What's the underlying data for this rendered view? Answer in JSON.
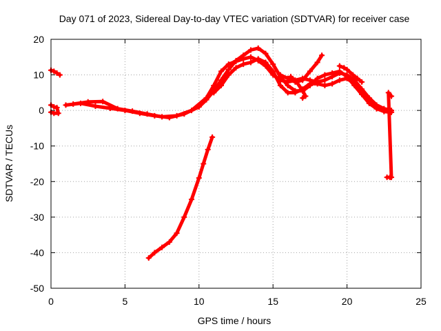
{
  "chart_data": {
    "type": "scatter",
    "title": "Day 071 of 2023, Sidereal Day-to-day VTEC variation (SDTVAR) for receiver case",
    "xlabel": "GPS time / hours",
    "ylabel": "SDTVAR / TECUs",
    "xlim": [
      0,
      25
    ],
    "ylim": [
      -50,
      20
    ],
    "xticks": [
      0,
      5,
      10,
      15,
      20,
      25
    ],
    "yticks": [
      -50,
      -40,
      -30,
      -20,
      -10,
      0,
      10,
      20
    ],
    "grid": true,
    "legend": "none",
    "series": [
      {
        "name": "early-segment-high",
        "color": "#ff0000",
        "points": [
          [
            0.0,
            11.3
          ],
          [
            0.2,
            11.0
          ],
          [
            0.4,
            10.5
          ],
          [
            0.6,
            10.0
          ]
        ]
      },
      {
        "name": "early-segment-low",
        "color": "#ff0000",
        "points": [
          [
            0.0,
            1.5
          ],
          [
            0.2,
            1.0
          ],
          [
            0.4,
            0.8
          ],
          [
            0.5,
            -0.8
          ],
          [
            0.2,
            -0.8
          ],
          [
            0.0,
            -0.5
          ]
        ]
      },
      {
        "name": "main-track-a",
        "color": "#ff0000",
        "points": [
          [
            1.0,
            1.5
          ],
          [
            2.0,
            2.0
          ],
          [
            3.0,
            1.2
          ],
          [
            4.0,
            0.6
          ],
          [
            5.0,
            0.0
          ],
          [
            6.0,
            -0.8
          ],
          [
            7.0,
            -1.5
          ],
          [
            8.0,
            -2.0
          ],
          [
            9.0,
            -1.0
          ],
          [
            10.0,
            1.0
          ],
          [
            10.5,
            3.0
          ],
          [
            11.0,
            5.5
          ],
          [
            11.5,
            8.5
          ],
          [
            12.0,
            11.5
          ],
          [
            12.5,
            14.0
          ],
          [
            13.0,
            15.5
          ],
          [
            13.5,
            17.0
          ],
          [
            14.0,
            17.5
          ],
          [
            14.5,
            16.0
          ],
          [
            15.0,
            13.0
          ],
          [
            15.5,
            9.5
          ],
          [
            16.0,
            7.0
          ],
          [
            16.5,
            5.5
          ],
          [
            17.0,
            5.5
          ],
          [
            17.5,
            7.0
          ],
          [
            18.0,
            9.0
          ],
          [
            18.5,
            10.0
          ],
          [
            19.0,
            10.5
          ],
          [
            19.5,
            11.0
          ],
          [
            20.0,
            9.5
          ],
          [
            20.5,
            7.0
          ],
          [
            21.0,
            4.5
          ],
          [
            21.5,
            2.0
          ],
          [
            22.0,
            0.5
          ],
          [
            22.5,
            0.0
          ],
          [
            23.0,
            -0.5
          ]
        ]
      },
      {
        "name": "main-track-b",
        "color": "#ff0000",
        "points": [
          [
            1.5,
            1.8
          ],
          [
            2.5,
            2.4
          ],
          [
            3.5,
            2.5
          ],
          [
            4.5,
            0.5
          ],
          [
            5.5,
            -0.2
          ],
          [
            6.5,
            -1.0
          ],
          [
            7.5,
            -1.8
          ],
          [
            8.5,
            -1.5
          ],
          [
            9.5,
            0.0
          ],
          [
            10.5,
            3.5
          ],
          [
            11.0,
            7.0
          ],
          [
            11.5,
            11.0
          ],
          [
            12.0,
            13.0
          ],
          [
            12.5,
            13.8
          ],
          [
            13.0,
            14.5
          ],
          [
            13.5,
            15.0
          ],
          [
            14.0,
            14.0
          ],
          [
            14.5,
            12.5
          ],
          [
            15.0,
            10.0
          ],
          [
            15.5,
            8.5
          ],
          [
            16.0,
            8.0
          ],
          [
            16.5,
            8.5
          ],
          [
            17.0,
            9.0
          ],
          [
            17.5,
            8.5
          ],
          [
            18.0,
            8.0
          ],
          [
            18.5,
            8.5
          ],
          [
            19.0,
            9.5
          ],
          [
            19.5,
            10.5
          ],
          [
            20.0,
            10.0
          ],
          [
            20.5,
            8.5
          ],
          [
            21.0,
            6.0
          ],
          [
            21.5,
            3.5
          ],
          [
            22.0,
            1.5
          ],
          [
            22.5,
            0.5
          ],
          [
            23.0,
            0.0
          ]
        ]
      },
      {
        "name": "main-track-c",
        "color": "#ff0000",
        "points": [
          [
            11.0,
            5.0
          ],
          [
            11.5,
            7.0
          ],
          [
            12.0,
            10.0
          ],
          [
            12.5,
            12.0
          ],
          [
            13.0,
            13.0
          ],
          [
            13.5,
            13.5
          ],
          [
            14.0,
            14.5
          ],
          [
            14.5,
            13.5
          ],
          [
            15.0,
            11.0
          ],
          [
            15.5,
            7.0
          ],
          [
            16.0,
            5.0
          ],
          [
            16.5,
            5.0
          ],
          [
            17.0,
            6.0
          ],
          [
            17.5,
            7.5
          ],
          [
            18.0,
            7.5
          ],
          [
            18.5,
            7.0
          ],
          [
            19.0,
            7.5
          ],
          [
            19.5,
            8.5
          ],
          [
            20.0,
            9.0
          ],
          [
            20.5,
            7.5
          ],
          [
            21.0,
            5.0
          ],
          [
            21.5,
            2.5
          ],
          [
            22.0,
            0.5
          ],
          [
            22.5,
            -0.3
          ],
          [
            23.0,
            -0.5
          ]
        ]
      },
      {
        "name": "branch-16-18",
        "color": "#ff0000",
        "points": [
          [
            15.5,
            10.0
          ],
          [
            16.0,
            9.0
          ],
          [
            16.5,
            8.0
          ],
          [
            17.0,
            8.5
          ],
          [
            17.5,
            11.0
          ],
          [
            18.0,
            13.5
          ],
          [
            18.3,
            15.5
          ]
        ]
      },
      {
        "name": "branch-16-17",
        "color": "#ff0000",
        "points": [
          [
            16.2,
            9.5
          ],
          [
            16.6,
            8.0
          ],
          [
            17.0,
            5.5
          ],
          [
            17.2,
            4.0
          ],
          [
            17.0,
            3.5
          ]
        ]
      },
      {
        "name": "branch-20-21",
        "color": "#ff0000",
        "points": [
          [
            19.5,
            12.5
          ],
          [
            19.8,
            12.0
          ],
          [
            20.0,
            11.5
          ],
          [
            20.4,
            10.0
          ],
          [
            20.7,
            9.0
          ],
          [
            21.0,
            8.0
          ]
        ]
      },
      {
        "name": "descending-track",
        "color": "#ff0000",
        "points": [
          [
            6.6,
            -41.5
          ],
          [
            7.0,
            -40.0
          ],
          [
            7.5,
            -38.5
          ],
          [
            8.0,
            -37.0
          ],
          [
            8.5,
            -34.5
          ],
          [
            9.0,
            -30.0
          ],
          [
            9.5,
            -25.0
          ],
          [
            10.0,
            -19.0
          ],
          [
            10.3,
            -15.0
          ],
          [
            10.6,
            -11.0
          ],
          [
            10.9,
            -7.5
          ]
        ]
      },
      {
        "name": "late-isolated",
        "color": "#ff0000",
        "points": [
          [
            22.7,
            -18.8
          ],
          [
            22.9,
            -18.8
          ],
          [
            23.0,
            -18.8
          ],
          [
            22.8,
            5.0
          ],
          [
            23.0,
            4.0
          ]
        ]
      }
    ]
  }
}
